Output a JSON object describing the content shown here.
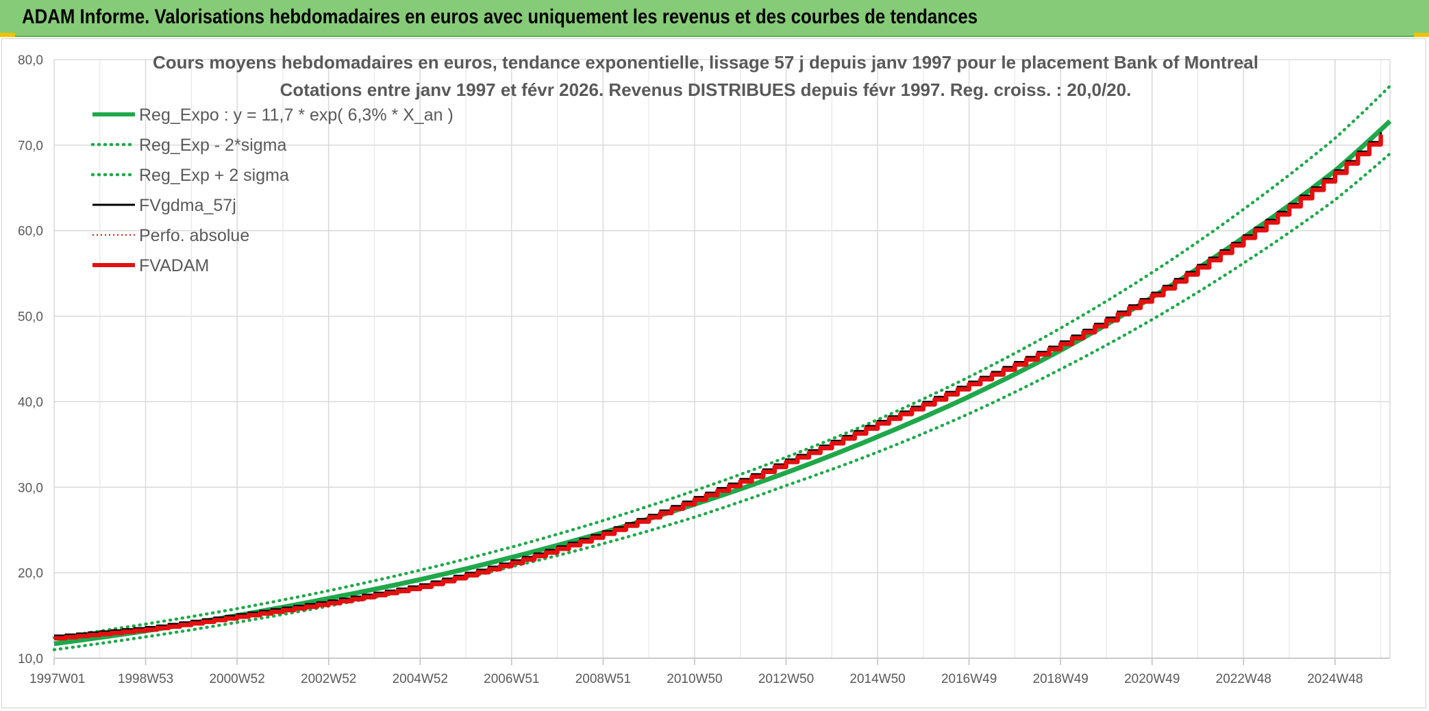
{
  "header": {
    "title": "ADAM Informe. Valorisations hebdomadaires en euros avec uniquement les revenus et des courbes de tendances"
  },
  "chart_data": {
    "type": "line",
    "title_line1": "Cours moyens hebdomadaires en euros, tendance exponentielle, lissage 57 j depuis janv 1997 pour le placement Bank of Montreal",
    "title_line2": "Cotations entre janv 1997 et févr 2026. Revenus DISTRIBUES depuis févr 1997. Reg. croiss. : 20,0/20.",
    "xlabel": "",
    "ylabel": "",
    "x_ticks": [
      "1997W01",
      "1998W53",
      "2000W52",
      "2002W52",
      "2004W52",
      "2006W51",
      "2008W51",
      "2010W50",
      "2012W50",
      "2014W50",
      "2016W49",
      "2018W49",
      "2020W49",
      "2022W48",
      "2024W48"
    ],
    "x_tick_years": [
      1997.0,
      1999.0,
      2001.0,
      2003.0,
      2005.0,
      2007.0,
      2009.0,
      2011.0,
      2013.0,
      2015.0,
      2017.0,
      2019.0,
      2021.0,
      2023.0,
      2025.0
    ],
    "xlim": [
      1997.0,
      2026.2
    ],
    "ylim": [
      10,
      80
    ],
    "y_ticks": [
      "10,0",
      "20,0",
      "30,0",
      "40,0",
      "50,0",
      "60,0",
      "70,0",
      "80,0"
    ],
    "y_tick_values": [
      10,
      20,
      30,
      40,
      50,
      60,
      70,
      80
    ],
    "grid": true,
    "legend_position": "top-left",
    "colors": {
      "green": "#1fa84a",
      "black": "#000000",
      "red": "#e31010"
    },
    "series": [
      {
        "name": "Reg_Expo : y = 11,7 * exp( 6,3% *  X_an )",
        "style": "solid",
        "color": "#1fa84a",
        "x": [
          1997,
          1999,
          2001,
          2003,
          2005,
          2007,
          2009,
          2011,
          2013,
          2015,
          2017,
          2019,
          2021,
          2023,
          2025,
          2026.2
        ],
        "y": [
          11.7,
          13.2,
          15.0,
          17.0,
          19.2,
          21.8,
          24.7,
          28.0,
          31.7,
          35.9,
          40.6,
          46.0,
          52.2,
          59.2,
          67.0,
          72.8
        ]
      },
      {
        "name": "Reg_Exp - 2*sigma",
        "style": "dotted",
        "color": "#1fa84a",
        "x": [
          1997,
          1999,
          2001,
          2003,
          2005,
          2007,
          2009,
          2011,
          2013,
          2015,
          2017,
          2019,
          2021,
          2023,
          2025,
          2026.2
        ],
        "y": [
          11.0,
          12.5,
          14.2,
          16.1,
          18.2,
          20.7,
          23.4,
          26.5,
          30.2,
          34.1,
          38.6,
          43.8,
          49.6,
          56.2,
          63.6,
          69.0
        ]
      },
      {
        "name": "Reg_Exp + 2 sigma",
        "style": "dotted",
        "color": "#1fa84a",
        "x": [
          1997,
          1999,
          2001,
          2003,
          2005,
          2007,
          2009,
          2011,
          2013,
          2015,
          2017,
          2019,
          2021,
          2023,
          2025,
          2026.2
        ],
        "y": [
          12.4,
          14.0,
          15.8,
          17.9,
          20.3,
          23.0,
          26.1,
          29.6,
          33.5,
          37.9,
          42.9,
          48.6,
          55.1,
          62.5,
          70.8,
          76.9
        ]
      },
      {
        "name": "FVgdma_57j",
        "style": "solid",
        "color": "#000000",
        "x": [
          1997,
          1999,
          2001,
          2003,
          2005,
          2007,
          2009,
          2011,
          2013,
          2015,
          2017,
          2019,
          2021,
          2023,
          2025,
          2026.2
        ],
        "y": [
          12.4,
          13.4,
          14.9,
          16.5,
          18.4,
          21.2,
          24.6,
          28.6,
          33.0,
          37.5,
          42.1,
          46.8,
          52.5,
          59.2,
          66.8,
          72.2
        ]
      },
      {
        "name": "Perfo. absolue",
        "style": "dotted",
        "color": "#e31010",
        "x": [
          1997,
          1999,
          2001,
          2003,
          2005,
          2007,
          2009,
          2011,
          2013,
          2015,
          2017,
          2019,
          2021,
          2023,
          2025,
          2026.2
        ],
        "y": [
          12.4,
          13.4,
          14.9,
          16.5,
          18.4,
          21.2,
          24.6,
          28.6,
          33.0,
          37.5,
          42.1,
          46.8,
          52.5,
          59.2,
          66.8,
          72.2
        ]
      },
      {
        "name": "FVADAM",
        "style": "solid",
        "color": "#e31010",
        "x": [
          1997,
          1999,
          2001,
          2003,
          2005,
          2007,
          2009,
          2011,
          2013,
          2015,
          2017,
          2019,
          2021,
          2023,
          2025,
          2026.2
        ],
        "y": [
          12.4,
          13.4,
          14.9,
          16.5,
          18.4,
          21.2,
          24.6,
          28.6,
          33.0,
          37.5,
          42.1,
          46.8,
          52.5,
          59.2,
          66.8,
          72.2
        ]
      }
    ]
  }
}
